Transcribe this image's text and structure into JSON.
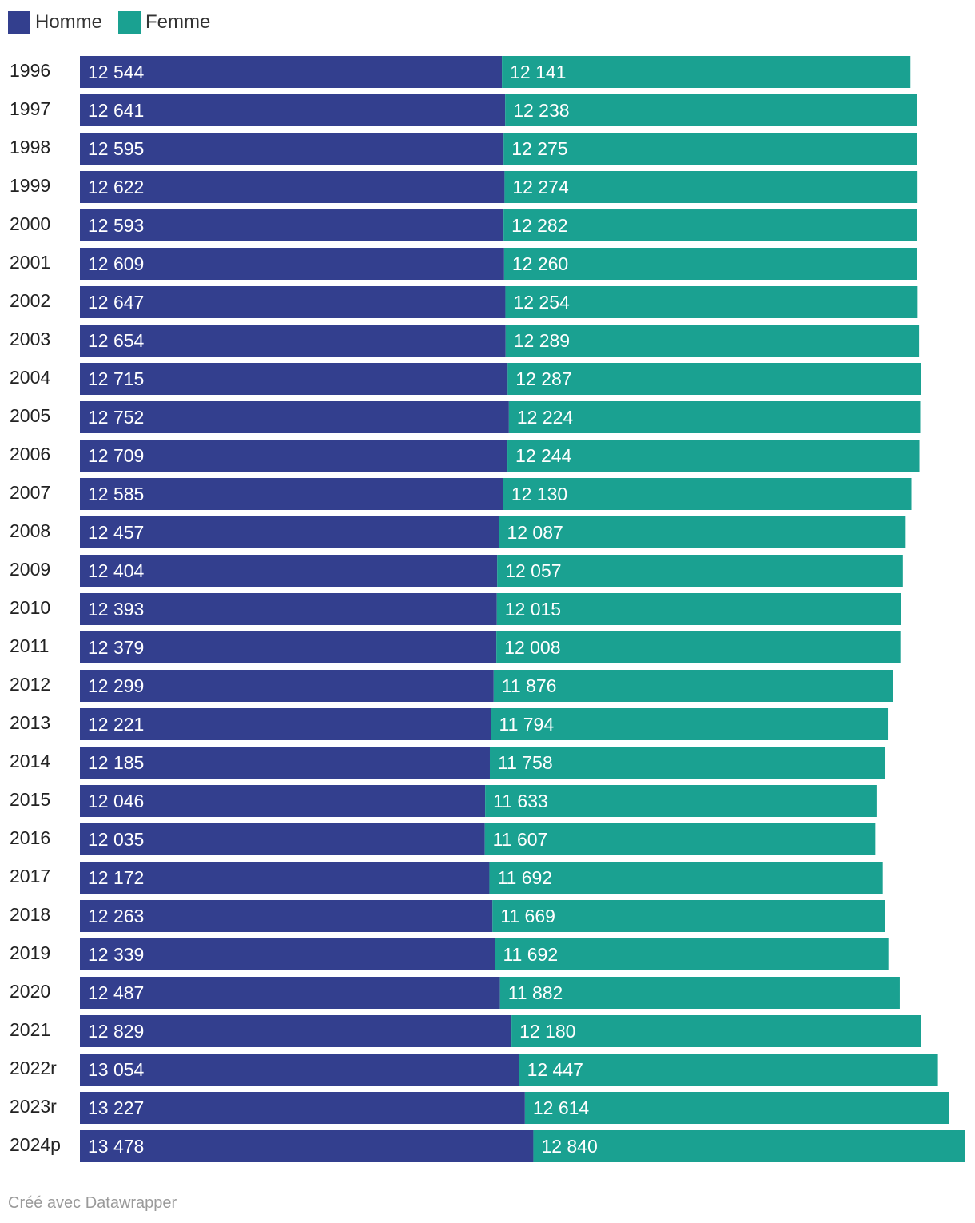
{
  "legend": {
    "homme_label": "Homme",
    "femme_label": "Femme"
  },
  "colors": {
    "homme": "#333F8E",
    "femme": "#1AA191"
  },
  "footer": {
    "credit": "Créé avec Datawrapper"
  },
  "chart_data": {
    "type": "bar",
    "orientation": "horizontal",
    "stacked": true,
    "title": "",
    "xlabel": "",
    "ylabel": "",
    "legend_position": "top-left",
    "grid": false,
    "categories": [
      "1996",
      "1997",
      "1998",
      "1999",
      "2000",
      "2001",
      "2002",
      "2003",
      "2004",
      "2005",
      "2006",
      "2007",
      "2008",
      "2009",
      "2010",
      "2011",
      "2012",
      "2013",
      "2014",
      "2015",
      "2016",
      "2017",
      "2018",
      "2019",
      "2020",
      "2021",
      "2022r",
      "2023r",
      "2024p"
    ],
    "series": [
      {
        "name": "Homme",
        "values": [
          12544,
          12641,
          12595,
          12622,
          12593,
          12609,
          12647,
          12654,
          12715,
          12752,
          12709,
          12585,
          12457,
          12404,
          12393,
          12379,
          12299,
          12221,
          12185,
          12046,
          12035,
          12172,
          12263,
          12339,
          12487,
          12829,
          13054,
          13227,
          13478
        ],
        "labels": [
          "12 544",
          "12 641",
          "12 595",
          "12 622",
          "12 593",
          "12 609",
          "12 647",
          "12 654",
          "12 715",
          "12 752",
          "12 709",
          "12 585",
          "12 457",
          "12 404",
          "12 393",
          "12 379",
          "12 299",
          "12 221",
          "12 185",
          "12 046",
          "12 035",
          "12 172",
          "12 263",
          "12 339",
          "12 487",
          "12 829",
          "13 054",
          "13 227",
          "13 478"
        ]
      },
      {
        "name": "Femme",
        "values": [
          12141,
          12238,
          12275,
          12274,
          12282,
          12260,
          12254,
          12289,
          12287,
          12224,
          12244,
          12130,
          12087,
          12057,
          12015,
          12008,
          11876,
          11794,
          11758,
          11633,
          11607,
          11692,
          11669,
          11692,
          11882,
          12180,
          12447,
          12614,
          12840
        ],
        "labels": [
          "12 141",
          "12 238",
          "12 275",
          "12 274",
          "12 282",
          "12 260",
          "12 254",
          "12 289",
          "12 287",
          "12 224",
          "12 244",
          "12 130",
          "12 087",
          "12 057",
          "12 015",
          "12 008",
          "11 876",
          "11 794",
          "11 758",
          "11 633",
          "11 607",
          "11 692",
          "11 669",
          "11 692",
          "11 882",
          "12 180",
          "12 447",
          "12 614",
          "12 840"
        ]
      }
    ]
  }
}
